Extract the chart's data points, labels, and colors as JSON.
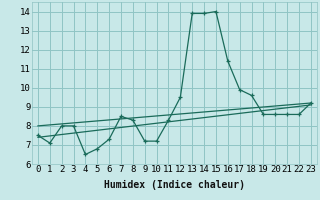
{
  "xlabel": "Humidex (Indice chaleur)",
  "ylabel": "",
  "bg_color": "#c8e8e8",
  "grid_color": "#90c4c4",
  "line_color": "#1a6b5a",
  "xlim": [
    -0.5,
    23.5
  ],
  "ylim": [
    6,
    14.5
  ],
  "yticks": [
    6,
    7,
    8,
    9,
    10,
    11,
    12,
    13,
    14
  ],
  "xticks": [
    0,
    1,
    2,
    3,
    4,
    5,
    6,
    7,
    8,
    9,
    10,
    11,
    12,
    13,
    14,
    15,
    16,
    17,
    18,
    19,
    20,
    21,
    22,
    23
  ],
  "line1_x": [
    0,
    1,
    2,
    3,
    4,
    5,
    6,
    7,
    8,
    9,
    10,
    11,
    12,
    13,
    14,
    15,
    16,
    17,
    18,
    19,
    20,
    21,
    22,
    23
  ],
  "line1_y": [
    7.5,
    7.1,
    8.0,
    8.0,
    6.5,
    6.8,
    7.3,
    8.5,
    8.3,
    7.2,
    7.2,
    8.3,
    9.5,
    13.9,
    13.9,
    14.0,
    11.4,
    9.9,
    9.6,
    8.6,
    8.6,
    8.6,
    8.6,
    9.2
  ],
  "line2_x": [
    0,
    23
  ],
  "line2_y": [
    7.4,
    9.1
  ],
  "line3_x": [
    0,
    23
  ],
  "line3_y": [
    8.0,
    9.2
  ],
  "font_size_xlabel": 7,
  "tick_fontsize": 6.5
}
